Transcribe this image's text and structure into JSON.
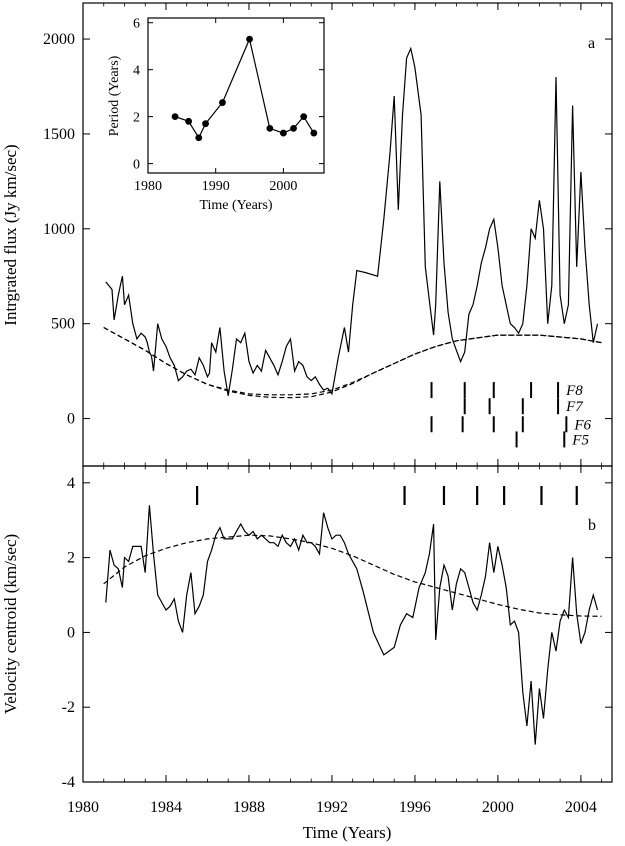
{
  "chart_data": [
    {
      "panel": "a",
      "type": "line",
      "panel_label": "a",
      "xlabel": "",
      "ylabel": "Intrgrated flux (Jy km/sec)",
      "xlim": [
        1980,
        2005.5
      ],
      "ylim": [
        -250,
        2190
      ],
      "x_ticks": [
        1980,
        1984,
        1988,
        1992,
        1996,
        2000,
        2004
      ],
      "y_ticks": [
        0,
        500,
        1000,
        1500,
        2000
      ],
      "series": [
        {
          "style": "solid",
          "x": [
            1981.1,
            1981.4,
            1981.5,
            1981.7,
            1981.8,
            1981.9,
            1982.0,
            1982.2,
            1982.4,
            1982.6,
            1982.8,
            1983.0,
            1983.1,
            1983.2,
            1983.3,
            1983.4,
            1983.6,
            1983.8,
            1984.0,
            1984.2,
            1984.4,
            1984.6,
            1984.8,
            1985.0,
            1985.2,
            1985.4,
            1985.6,
            1985.8,
            1986.0,
            1986.1,
            1986.2,
            1986.4,
            1986.6,
            1986.8,
            1987.0,
            1987.2,
            1987.4,
            1987.6,
            1987.8,
            1988.0,
            1988.2,
            1988.4,
            1988.6,
            1988.8,
            1989.0,
            1989.2,
            1989.4,
            1989.6,
            1989.8,
            1990.0,
            1990.2,
            1990.4,
            1990.6,
            1990.8,
            1991.0,
            1991.2,
            1991.4,
            1991.6,
            1991.8,
            1992.0,
            1992.3,
            1992.6,
            1992.8,
            1993.0,
            1993.2,
            1993.6,
            1994.2,
            1994.5,
            1994.8,
            1995.0,
            1995.2,
            1995.4,
            1995.6,
            1995.8,
            1996.0,
            1996.3,
            1996.5,
            1996.7,
            1996.9,
            1997.0,
            1997.2,
            1997.4,
            1997.6,
            1997.8,
            1998.0,
            1998.2,
            1998.4,
            1998.6,
            1998.8,
            1999.0,
            1999.2,
            1999.4,
            1999.6,
            1999.8,
            2000.0,
            2000.2,
            2000.4,
            2000.6,
            2000.8,
            2001.0,
            2001.2,
            2001.4,
            2001.6,
            2001.8,
            2002.0,
            2002.2,
            2002.4,
            2002.6,
            2002.8,
            2003.0,
            2003.2,
            2003.4,
            2003.6,
            2003.8,
            2004.0,
            2004.2,
            2004.4,
            2004.6,
            2004.8
          ],
          "y": [
            720,
            680,
            520,
            650,
            700,
            750,
            600,
            650,
            500,
            420,
            450,
            430,
            400,
            350,
            330,
            250,
            500,
            420,
            380,
            320,
            280,
            200,
            220,
            250,
            260,
            230,
            320,
            280,
            220,
            240,
            400,
            350,
            480,
            250,
            120,
            260,
            420,
            400,
            450,
            300,
            240,
            280,
            250,
            360,
            320,
            280,
            230,
            300,
            380,
            420,
            250,
            300,
            280,
            220,
            200,
            220,
            180,
            150,
            160,
            130,
            320,
            480,
            350,
            600,
            780,
            770,
            750,
            1050,
            1400,
            1700,
            1100,
            1600,
            1900,
            1950,
            1850,
            1600,
            800,
            620,
            440,
            600,
            1250,
            820,
            560,
            420,
            360,
            300,
            350,
            550,
            600,
            700,
            820,
            900,
            1000,
            1050,
            900,
            700,
            600,
            500,
            480,
            450,
            500,
            700,
            1000,
            950,
            1150,
            1000,
            500,
            700,
            1800,
            650,
            500,
            600,
            1650,
            800,
            1300,
            900,
            600,
            400,
            500
          ]
        },
        {
          "style": "dashed",
          "x": [
            1981.0,
            1982.0,
            1983.0,
            1984.0,
            1985.0,
            1986.0,
            1987.0,
            1988.0,
            1989.0,
            1990.0,
            1991.0,
            1992.0,
            1993.0,
            1994.0,
            1995.0,
            1996.0,
            1997.0,
            1998.0,
            1999.0,
            2000.0,
            2001.0,
            2002.0,
            2003.0,
            2004.0,
            2005.0
          ],
          "y": [
            480,
            420,
            360,
            290,
            230,
            180,
            150,
            130,
            125,
            125,
            130,
            150,
            190,
            240,
            290,
            340,
            380,
            410,
            425,
            440,
            440,
            440,
            430,
            420,
            400
          ]
        },
        {
          "style": "dashed",
          "x": [
            1981.0,
            1982.0,
            1983.0,
            1984.0,
            1985.0,
            1986.0,
            1987.0,
            1988.0,
            1989.0,
            1990.0,
            1991.0,
            1992.0,
            1993.0,
            1994.0,
            1995.0,
            1996.0,
            1997.0,
            1998.0,
            1999.0,
            2000.0,
            2001.0,
            2002.0,
            2003.0,
            2004.0,
            2005.0
          ],
          "y": [
            480,
            420,
            360,
            290,
            230,
            180,
            145,
            122,
            112,
            110,
            115,
            140,
            185,
            240,
            290,
            340,
            380,
            410,
            425,
            440,
            440,
            440,
            430,
            420,
            400
          ]
        }
      ],
      "flare_labels": [
        {
          "label": "F8",
          "x": [
            1996.8,
            1998.4,
            1999.8,
            2001.6,
            2002.9
          ],
          "y": 150
        },
        {
          "label": "F7",
          "x": [
            1998.4,
            1999.6,
            2001.2,
            2002.9
          ],
          "y": 65
        },
        {
          "label": "F6",
          "x": [
            1996.8,
            1998.3,
            1999.8,
            2001.2,
            2003.3
          ],
          "y": -30
        },
        {
          "label": "F5",
          "x": [
            2000.9,
            2003.2
          ],
          "y": -110
        }
      ]
    },
    {
      "panel": "inset",
      "type": "line",
      "xlabel": "Time (Years)",
      "ylabel": "Period (Years)",
      "xlim": [
        1980,
        2006
      ],
      "ylim": [
        -0.4,
        6.2
      ],
      "x_ticks": [
        1980,
        1990,
        2000
      ],
      "y_ticks": [
        0,
        2,
        4,
        6
      ],
      "x": [
        1984,
        1986,
        1987.5,
        1988.5,
        1991,
        1995,
        1998,
        2000,
        2001.5,
        2003,
        2004.5
      ],
      "y": [
        2.0,
        1.8,
        1.1,
        1.7,
        2.6,
        5.3,
        1.5,
        1.3,
        1.5,
        2.0,
        1.3
      ]
    },
    {
      "panel": "b",
      "type": "line",
      "panel_label": "b",
      "xlabel": "Time (Years)",
      "ylabel": "Velocity centroid (km/sec)",
      "xlim": [
        1980,
        2005.5
      ],
      "ylim": [
        -4,
        4.45
      ],
      "x_ticks": [
        1980,
        1984,
        1988,
        1992,
        1996,
        2000,
        2004
      ],
      "y_ticks": [
        -4,
        -2,
        0,
        2,
        4
      ],
      "series": [
        {
          "style": "solid",
          "x": [
            1981.1,
            1981.3,
            1981.5,
            1981.7,
            1981.9,
            1982.0,
            1982.2,
            1982.4,
            1982.6,
            1982.8,
            1983.0,
            1983.2,
            1983.4,
            1983.6,
            1983.8,
            1984.0,
            1984.2,
            1984.4,
            1984.6,
            1984.8,
            1985.0,
            1985.2,
            1985.4,
            1985.6,
            1985.8,
            1986.0,
            1986.2,
            1986.4,
            1986.6,
            1986.8,
            1987.0,
            1987.2,
            1987.4,
            1987.6,
            1987.8,
            1988.0,
            1988.2,
            1988.4,
            1988.6,
            1988.8,
            1989.0,
            1989.2,
            1989.4,
            1989.6,
            1989.8,
            1990.0,
            1990.2,
            1990.4,
            1990.6,
            1990.8,
            1991.0,
            1991.2,
            1991.4,
            1991.6,
            1991.8,
            1992.0,
            1992.2,
            1992.4,
            1992.6,
            1992.8,
            1993.0,
            1993.2,
            1993.5,
            1994.0,
            1994.5,
            1995.0,
            1995.3,
            1995.6,
            1995.9,
            1996.2,
            1996.5,
            1996.7,
            1996.9,
            1997.0,
            1997.2,
            1997.4,
            1997.6,
            1997.8,
            1998.0,
            1998.2,
            1998.4,
            1998.6,
            1998.8,
            1999.0,
            1999.2,
            1999.4,
            1999.6,
            1999.8,
            2000.0,
            2000.2,
            2000.4,
            2000.6,
            2000.8,
            2001.0,
            2001.2,
            2001.4,
            2001.6,
            2001.8,
            2002.0,
            2002.2,
            2002.4,
            2002.6,
            2002.8,
            2003.0,
            2003.2,
            2003.4,
            2003.6,
            2003.8,
            2004.0,
            2004.2,
            2004.4,
            2004.6,
            2004.8
          ],
          "y": [
            0.8,
            2.2,
            1.8,
            1.7,
            1.2,
            2.0,
            1.9,
            2.3,
            2.3,
            2.3,
            1.6,
            3.4,
            2.1,
            1.0,
            0.8,
            0.6,
            0.7,
            0.9,
            0.3,
            0.0,
            1.0,
            1.6,
            0.5,
            0.7,
            1.0,
            1.9,
            2.2,
            2.6,
            2.8,
            2.5,
            2.5,
            2.5,
            2.7,
            2.9,
            2.7,
            2.6,
            2.7,
            2.5,
            2.6,
            2.5,
            2.4,
            2.4,
            2.3,
            2.6,
            2.4,
            2.3,
            2.5,
            2.2,
            2.6,
            2.4,
            2.4,
            2.3,
            2.1,
            3.2,
            2.8,
            2.5,
            2.6,
            2.6,
            2.4,
            2.1,
            1.9,
            1.7,
            1.1,
            0.0,
            -0.6,
            -0.4,
            0.2,
            0.5,
            0.4,
            1.2,
            1.6,
            2.1,
            2.9,
            -0.2,
            1.2,
            1.8,
            1.5,
            0.6,
            1.3,
            1.7,
            1.6,
            1.2,
            0.8,
            0.6,
            1.0,
            1.5,
            2.4,
            1.6,
            2.3,
            1.8,
            1.2,
            0.2,
            0.3,
            0.0,
            -1.6,
            -2.5,
            -1.3,
            -3.0,
            -1.5,
            -2.3,
            -1.0,
            0.0,
            -0.5,
            0.3,
            0.6,
            0.4,
            2.0,
            0.5,
            -0.3,
            0.0,
            0.6,
            1.0,
            0.6
          ]
        },
        {
          "style": "dashed",
          "x": [
            1981.0,
            1982.0,
            1983.0,
            1984.0,
            1985.0,
            1986.0,
            1987.0,
            1988.0,
            1989.0,
            1990.0,
            1991.0,
            1992.0,
            1993.0,
            1994.0,
            1995.0,
            1996.0,
            1997.0,
            1998.0,
            1999.0,
            2000.0,
            2001.0,
            2002.0,
            2003.0,
            2004.0,
            2005.0
          ],
          "y": [
            1.3,
            1.75,
            2.05,
            2.25,
            2.4,
            2.5,
            2.55,
            2.6,
            2.58,
            2.5,
            2.4,
            2.25,
            2.05,
            1.8,
            1.55,
            1.35,
            1.2,
            1.05,
            0.9,
            0.75,
            0.62,
            0.52,
            0.47,
            0.44,
            0.43
          ]
        }
      ],
      "event_marks_x": [
        1985.5,
        1995.5,
        1997.4,
        1999.0,
        2000.3,
        2002.1,
        2003.8
      ]
    }
  ]
}
